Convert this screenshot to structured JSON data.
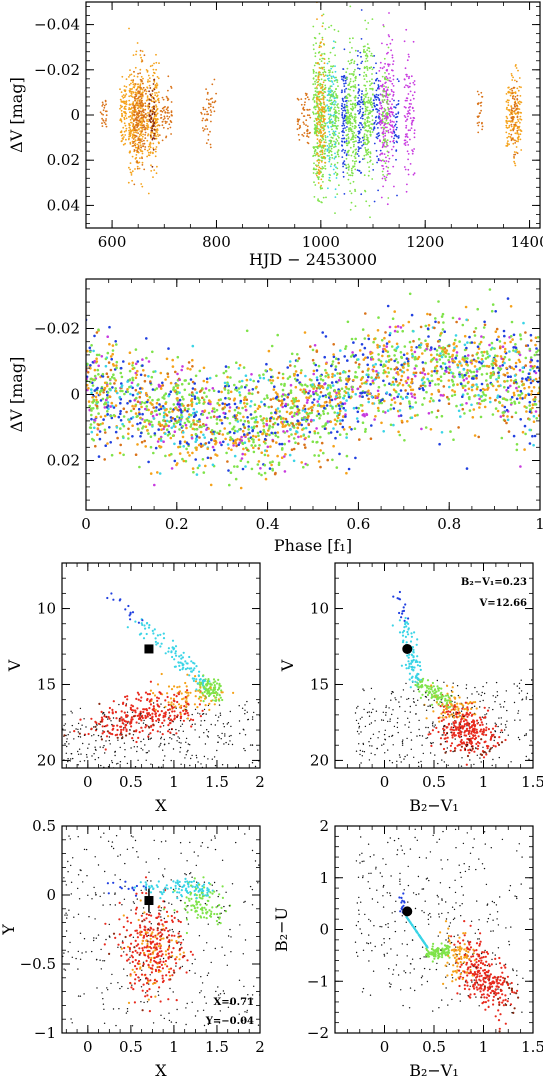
{
  "colors": {
    "orange": "#f5a21a",
    "dark_orange": "#d9731a",
    "green": "#7fe34a",
    "blue": "#2140e0",
    "cyan": "#3ad4e6",
    "magenta": "#c83adf",
    "red": "#e82a1e",
    "brown": "#8a2a12",
    "black": "#111111"
  },
  "chart_data": [
    {
      "id": "light-curve",
      "type": "scatter",
      "xlabel": "HJD − 2453000",
      "ylabel": "ΔV [mag]",
      "xlim": [
        550,
        1420
      ],
      "ylim": [
        0.05,
        -0.05
      ],
      "xticks": [
        600,
        800,
        1000,
        1200,
        1400
      ],
      "xtick_labels": [
        "600",
        "800",
        "1000",
        "1200",
        "1400"
      ],
      "yticks": [
        -0.04,
        -0.02,
        0,
        0.02,
        0.04
      ],
      "ytick_labels": [
        "−0.04",
        "−0.02",
        "0",
        "0.02",
        "0.04"
      ],
      "show_xtick_labels": true,
      "observing_runs": [
        {
          "start": 578,
          "end": 590,
          "n": 25,
          "spread": 0.008,
          "color": "dark_orange"
        },
        {
          "start": 615,
          "end": 628,
          "n": 80,
          "spread": 0.014,
          "color": "orange"
        },
        {
          "start": 632,
          "end": 660,
          "n": 320,
          "spread": 0.022,
          "color": "orange"
        },
        {
          "start": 640,
          "end": 665,
          "n": 180,
          "spread": 0.02,
          "color": "dark_orange"
        },
        {
          "start": 666,
          "end": 690,
          "n": 200,
          "spread": 0.022,
          "color": "orange"
        },
        {
          "start": 670,
          "end": 682,
          "n": 60,
          "spread": 0.018,
          "color": "brown"
        },
        {
          "start": 690,
          "end": 715,
          "n": 60,
          "spread": 0.012,
          "color": "dark_orange"
        },
        {
          "start": 770,
          "end": 800,
          "n": 50,
          "spread": 0.012,
          "color": "dark_orange"
        },
        {
          "start": 955,
          "end": 980,
          "n": 60,
          "spread": 0.014,
          "color": "dark_orange"
        },
        {
          "start": 985,
          "end": 1010,
          "n": 320,
          "spread": 0.034,
          "color": "green"
        },
        {
          "start": 992,
          "end": 1008,
          "n": 160,
          "spread": 0.03,
          "color": "orange"
        },
        {
          "start": 1012,
          "end": 1030,
          "n": 120,
          "spread": 0.028,
          "color": "cyan"
        },
        {
          "start": 1015,
          "end": 1035,
          "n": 160,
          "spread": 0.032,
          "color": "green"
        },
        {
          "start": 1040,
          "end": 1050,
          "n": 100,
          "spread": 0.028,
          "color": "blue"
        },
        {
          "start": 1048,
          "end": 1068,
          "n": 240,
          "spread": 0.032,
          "color": "green"
        },
        {
          "start": 1070,
          "end": 1082,
          "n": 90,
          "spread": 0.028,
          "color": "blue"
        },
        {
          "start": 1082,
          "end": 1100,
          "n": 200,
          "spread": 0.032,
          "color": "green"
        },
        {
          "start": 1100,
          "end": 1115,
          "n": 80,
          "spread": 0.028,
          "color": "blue"
        },
        {
          "start": 1112,
          "end": 1140,
          "n": 220,
          "spread": 0.03,
          "color": "magenta"
        },
        {
          "start": 1118,
          "end": 1130,
          "n": 70,
          "spread": 0.028,
          "color": "green"
        },
        {
          "start": 1140,
          "end": 1150,
          "n": 40,
          "spread": 0.02,
          "color": "blue"
        },
        {
          "start": 1160,
          "end": 1180,
          "n": 100,
          "spread": 0.03,
          "color": "magenta"
        },
        {
          "start": 1300,
          "end": 1310,
          "n": 25,
          "spread": 0.012,
          "color": "dark_orange"
        },
        {
          "start": 1355,
          "end": 1385,
          "n": 160,
          "spread": 0.018,
          "color": "orange"
        },
        {
          "start": 1365,
          "end": 1378,
          "n": 60,
          "spread": 0.016,
          "color": "dark_orange"
        }
      ]
    },
    {
      "id": "phase-curve",
      "type": "scatter",
      "xlabel": "Phase [f₁]",
      "ylabel": "ΔV [mag]",
      "xlim": [
        0,
        1
      ],
      "ylim": [
        0.035,
        -0.035
      ],
      "xticks": [
        0,
        0.2,
        0.4,
        0.6,
        0.8,
        1
      ],
      "xtick_labels": [
        "0",
        "0.2",
        "0.4",
        "0.6",
        "0.8",
        "1"
      ],
      "yticks": [
        -0.02,
        0,
        0.02
      ],
      "ytick_labels": [
        "−0.02",
        "0",
        "0.02"
      ],
      "show_xtick_labels": true,
      "amplitude": 0.012,
      "mean_phase_of_max": 0.8,
      "color_weights": {
        "green": 4,
        "orange": 3,
        "blue": 2,
        "magenta": 1,
        "dark_orange": 1,
        "cyan": 1
      }
    },
    {
      "id": "cmd-x-v",
      "type": "scatter",
      "xlabel": "X",
      "ylabel": "V",
      "xlim": [
        -0.3,
        2
      ],
      "ylim": [
        20.5,
        7
      ],
      "xticks": [
        0,
        0.5,
        1,
        1.5,
        2
      ],
      "xtick_labels": [
        "0",
        "0.5",
        "1",
        "1.5",
        "2"
      ],
      "yticks": [
        10,
        15,
        20
      ],
      "ytick_labels": [
        "10",
        "15",
        "20"
      ],
      "show_xtick_labels": true,
      "target": {
        "x": 0.71,
        "y": 12.66,
        "marker": "square"
      }
    },
    {
      "id": "cmd-bv-v",
      "type": "scatter",
      "xlabel": "B₂−V₁",
      "ylabel": "V",
      "xlim": [
        -0.5,
        1.5
      ],
      "ylim": [
        20.5,
        7
      ],
      "xticks": [
        0,
        0.5,
        1,
        1.5
      ],
      "xtick_labels": [
        "0",
        "0.5",
        "1",
        "1.5"
      ],
      "yticks": [
        10,
        15,
        20
      ],
      "ytick_labels": [
        "10",
        "15",
        "20"
      ],
      "show_xtick_labels": true,
      "target": {
        "x": 0.23,
        "y": 12.66,
        "marker": "circle"
      },
      "annotations": [
        "B₂−V₁=0.23",
        "V=12.66"
      ]
    },
    {
      "id": "xy-diagram",
      "type": "scatter",
      "xlabel": "X",
      "ylabel": "Y",
      "xlim": [
        -0.3,
        2
      ],
      "ylim": [
        -1,
        0.5
      ],
      "xticks": [
        0,
        0.5,
        1,
        1.5,
        2
      ],
      "xtick_labels": [
        "0",
        "0.5",
        "1",
        "1.5",
        "2"
      ],
      "yticks": [
        -1,
        -0.5,
        0,
        0.5
      ],
      "ytick_labels": [
        "−1",
        "−0.5",
        "0",
        "0.5"
      ],
      "show_xtick_labels": true,
      "target": {
        "x": 0.71,
        "y": -0.04,
        "marker": "square"
      },
      "annotations": [
        "X=0.71",
        "Y=−0.04"
      ]
    },
    {
      "id": "cc-diagram",
      "type": "scatter",
      "xlabel": "B₂−V₁",
      "ylabel": "B₂−U",
      "xlim": [
        -0.5,
        1.5
      ],
      "ylim": [
        -2,
        2
      ],
      "xticks": [
        0,
        0.5,
        1,
        1.5
      ],
      "xtick_labels": [
        "0",
        "0.5",
        "1",
        "1.5"
      ],
      "yticks": [
        -2,
        -1,
        0,
        1,
        2
      ],
      "ytick_labels": [
        "−2",
        "−1",
        "0",
        "1",
        "2"
      ],
      "show_xtick_labels": true,
      "target": {
        "x": 0.23,
        "y": 0.35,
        "marker": "circle"
      }
    }
  ]
}
